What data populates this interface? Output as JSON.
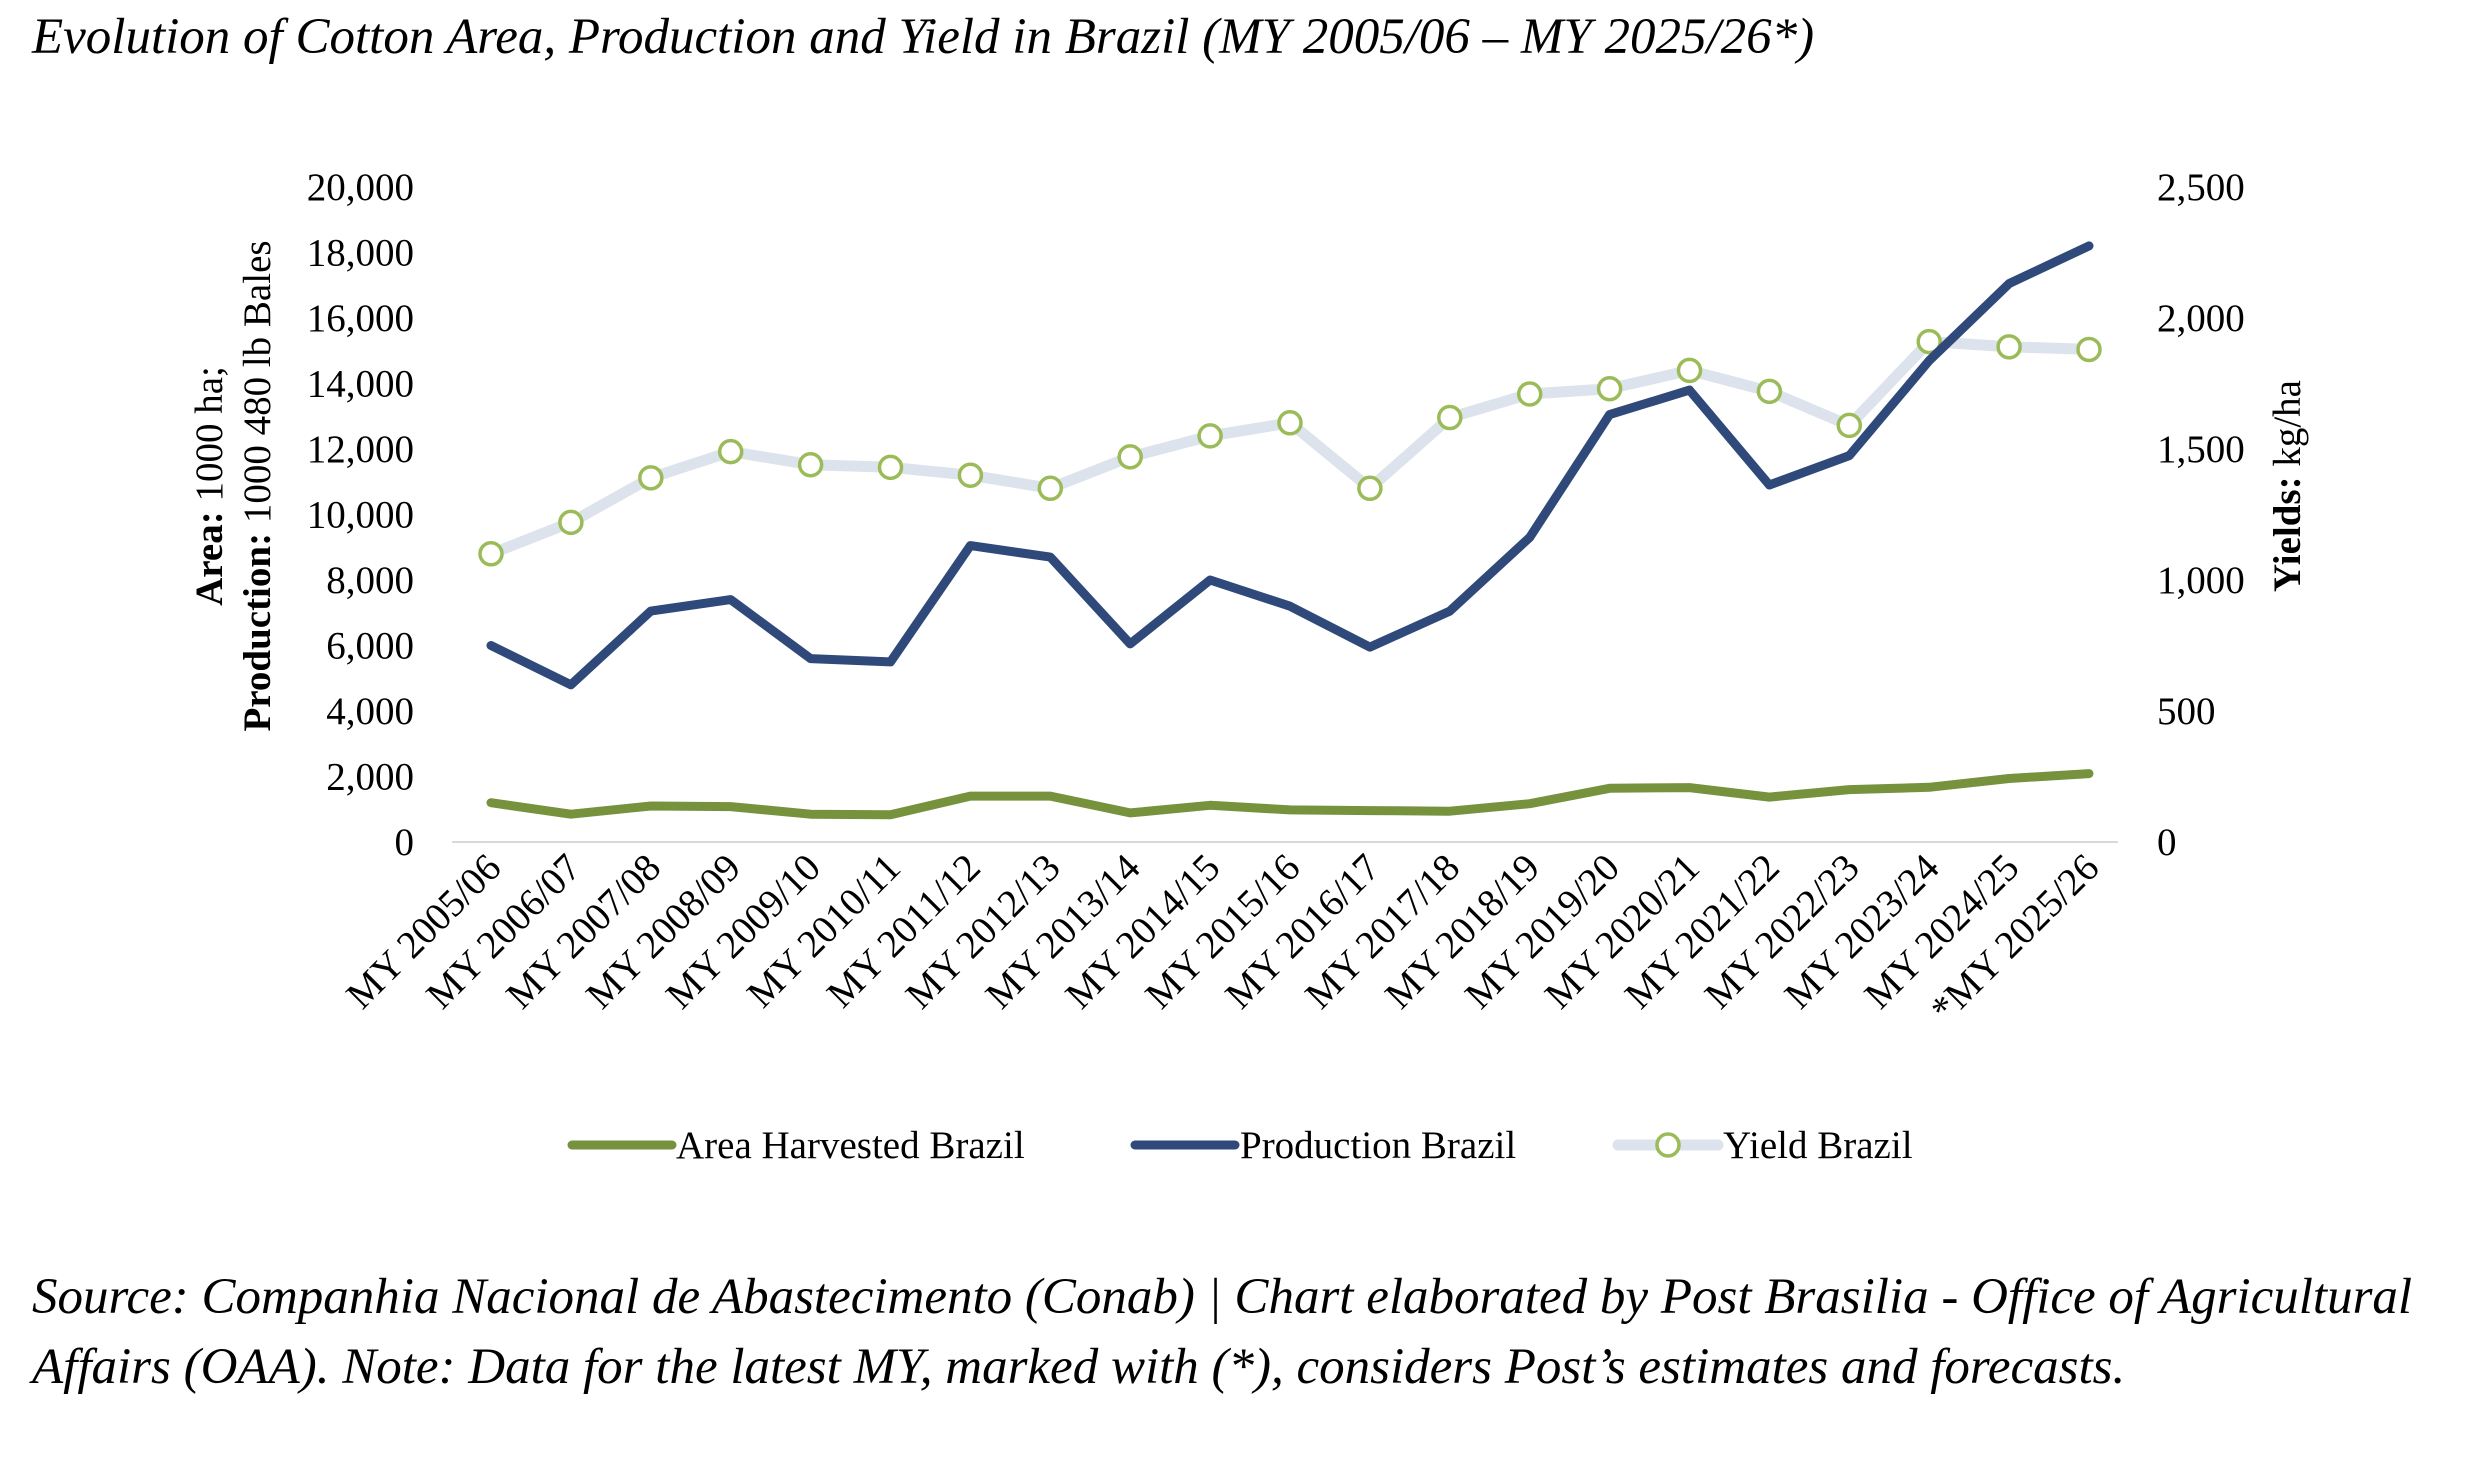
{
  "title": "Evolution of Cotton Area, Production and Yield in Brazil (MY 2005/06 – MY 2025/26*)",
  "source_note": "Source: Companhia Nacional de Abastecimento (Conab) | Chart elaborated by Post Brasilia - Office of Agricultural Affairs (OAA). Note: Data for the latest MY, marked with (*), considers Post’s estimates and forecasts.",
  "chart_data": {
    "type": "line",
    "categories": [
      "MY 2005/06",
      "MY 2006/07",
      "MY 2007/08",
      "MY 2008/09",
      "MY 2009/10",
      "MY 2010/11",
      "MY 2011/12",
      "MY 2012/13",
      "MY 2013/14",
      "MY 2014/15",
      "MY 2015/16",
      "MY 2016/17",
      "MY 2017/18",
      "MY 2018/19",
      "MY 2019/20",
      "MY 2020/21",
      "MY 2021/22",
      "MY 2022/23",
      "MY 2023/24",
      "MY 2024/25",
      "*MY 2025/26"
    ],
    "y_left": {
      "label_bold_1": "Area:",
      "label_1": " 1000 ha;",
      "label_bold_2": "Production:",
      "label_2": " 1000 480 lb Bales",
      "ylim": [
        0,
        20000
      ],
      "ticks": [
        "0",
        "2,000",
        "4,000",
        "6,000",
        "8,000",
        "10,000",
        "12,000",
        "14,000",
        "16,000",
        "18,000",
        "20,000"
      ]
    },
    "y_right": {
      "label_bold": "Yields:",
      "label": " kg/ha",
      "ylim": [
        0,
        2500
      ],
      "ticks": [
        "0",
        "500",
        "1,000",
        "1,500",
        "2,000",
        "2,500"
      ]
    },
    "series": [
      {
        "name": "Area Harvested Brazil",
        "axis": "left",
        "color": "#76923c",
        "values": [
          1200,
          850,
          1100,
          1080,
          850,
          830,
          1400,
          1400,
          890,
          1120,
          980,
          960,
          940,
          1170,
          1640,
          1660,
          1370,
          1600,
          1670,
          1940,
          2090
        ]
      },
      {
        "name": "Production Brazil",
        "axis": "left",
        "color": "#2f4a7a",
        "values": [
          6000,
          4800,
          7050,
          7400,
          5600,
          5500,
          9050,
          8700,
          6050,
          8000,
          7200,
          5950,
          7050,
          9300,
          13050,
          13800,
          10900,
          11800,
          14700,
          17050,
          18200
        ]
      },
      {
        "name": "Yield Brazil",
        "axis": "right",
        "color": "#dde3ec",
        "marker_color": "#9bbb59",
        "values": [
          1100,
          1220,
          1390,
          1490,
          1440,
          1430,
          1400,
          1350,
          1470,
          1550,
          1600,
          1350,
          1620,
          1710,
          1730,
          1800,
          1720,
          1590,
          1910,
          1890,
          1880
        ]
      }
    ],
    "grid": false,
    "legend_position": "bottom"
  }
}
